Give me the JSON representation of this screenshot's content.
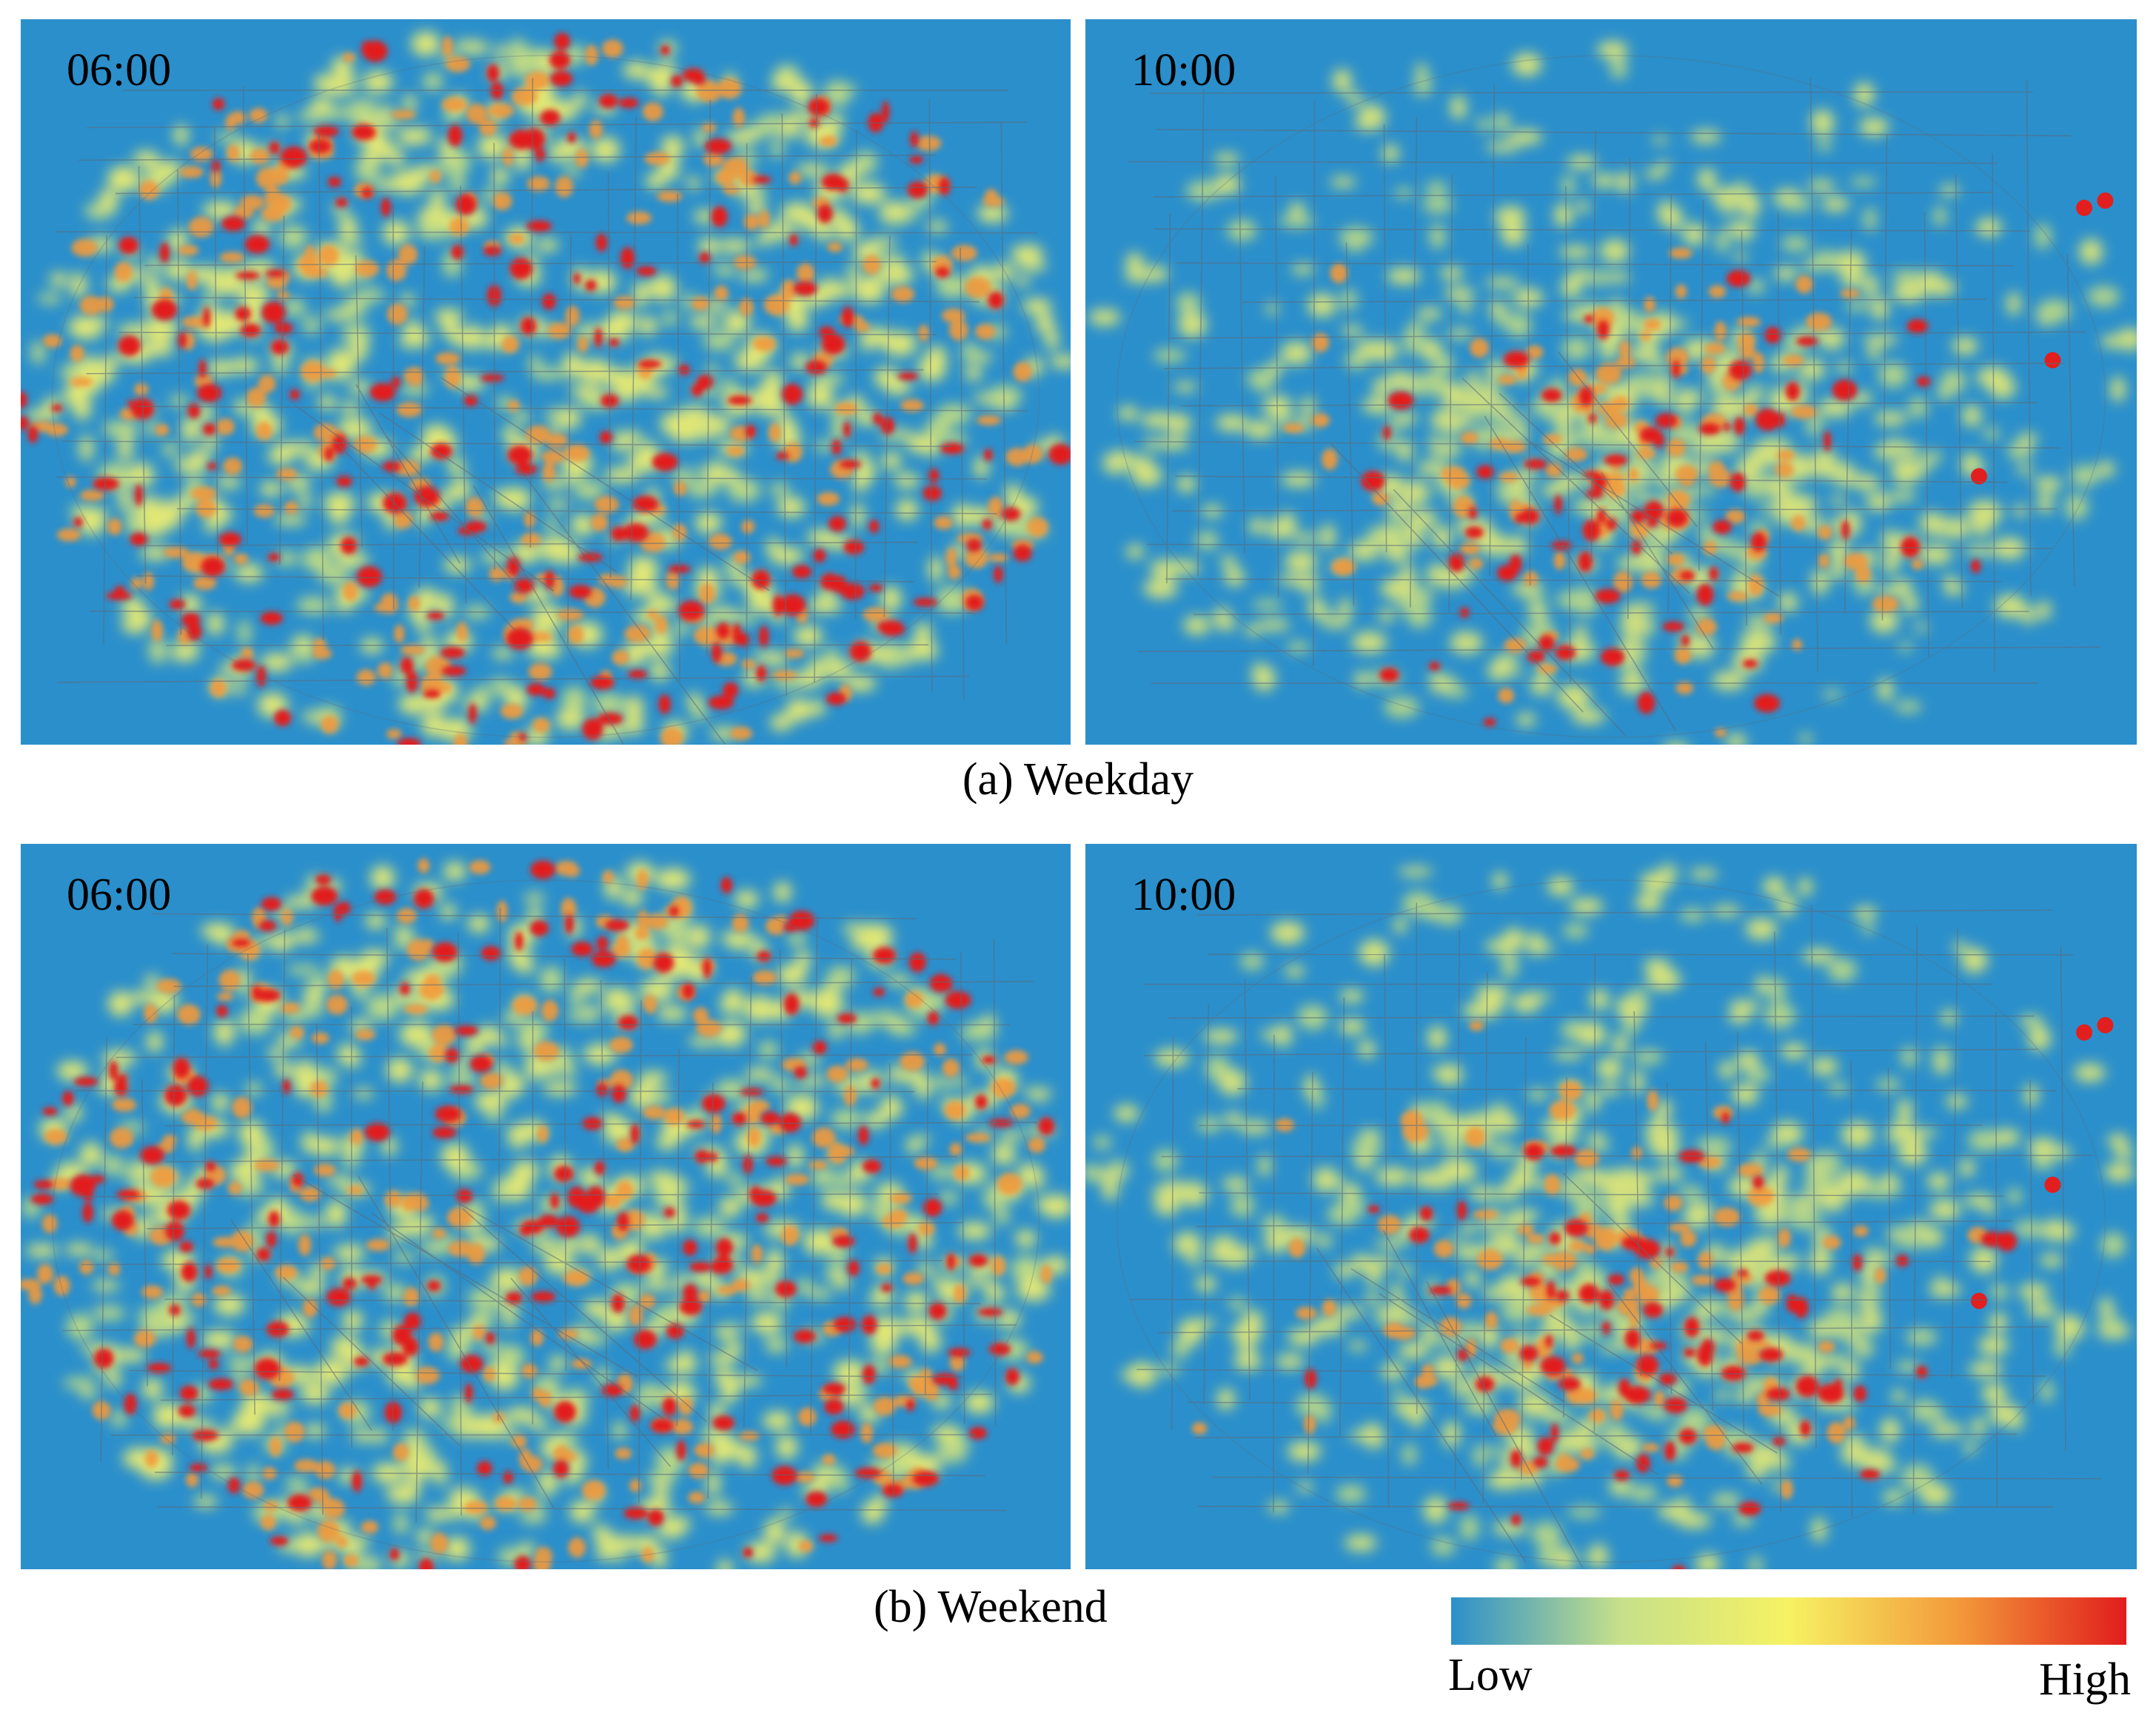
{
  "colors": {
    "background": "#2b8fcb",
    "low": "#2b8fcb",
    "mid": "#f3f06d",
    "high": "#e21f1f",
    "road": "#5b6a78"
  },
  "panels": [
    {
      "id": "weekday-0600",
      "time": "06:00",
      "intensity": "high"
    },
    {
      "id": "weekday-1000",
      "time": "10:00",
      "intensity": "concentrated"
    },
    {
      "id": "weekend-0600",
      "time": "06:00",
      "intensity": "high"
    },
    {
      "id": "weekend-1000",
      "time": "10:00",
      "intensity": "concentrated"
    }
  ],
  "captions": {
    "weekday": "(a) Weekday",
    "weekend": "(b) Weekend"
  },
  "legend": {
    "low": "Low",
    "high": "High",
    "stops": [
      "#2b8fcb",
      "#c6e08a",
      "#f6f263",
      "#f39a3a",
      "#e11d1d"
    ]
  }
}
